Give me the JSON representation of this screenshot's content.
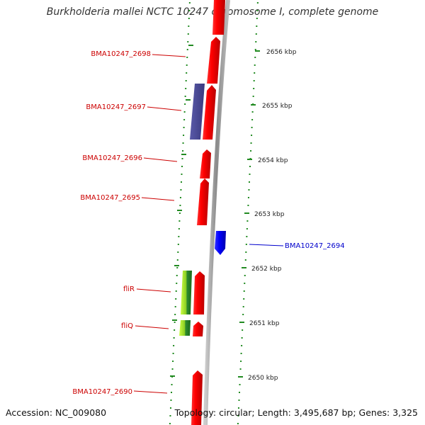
{
  "title": "Burkholderia mallei NCTC 10247 chromosome I, complete genome",
  "footer": {
    "accession": "Accession: NC_009080",
    "summary": "Topology: circular; Length: 3,495,687 bp; Genes: 3,325"
  },
  "colors": {
    "forward_gene": "#ff0000",
    "reverse_gene": "#0000ff",
    "flagellar_gene": "#99cc33",
    "misc_feature": "#4b4b99",
    "tick": "#228b22",
    "backbone": "#999999",
    "label": "#cc0000",
    "label_highlight": "#0000cc"
  },
  "scale": {
    "unit": "kbp",
    "ticks": [
      "2656 kbp",
      "2655 kbp",
      "2654 kbp",
      "2653 kbp",
      "2652 kbp",
      "2651 kbp",
      "2650 kbp"
    ]
  },
  "gene_labels": [
    {
      "name": "BMA10247_2698",
      "strand": "forward"
    },
    {
      "name": "BMA10247_2697",
      "strand": "forward"
    },
    {
      "name": "BMA10247_2696",
      "strand": "forward"
    },
    {
      "name": "BMA10247_2695",
      "strand": "forward"
    },
    {
      "name": "BMA10247_2694",
      "strand": "reverse"
    },
    {
      "name": "fliR",
      "strand": "forward"
    },
    {
      "name": "fliQ",
      "strand": "forward"
    },
    {
      "name": "BMA10247_2690",
      "strand": "forward"
    }
  ]
}
